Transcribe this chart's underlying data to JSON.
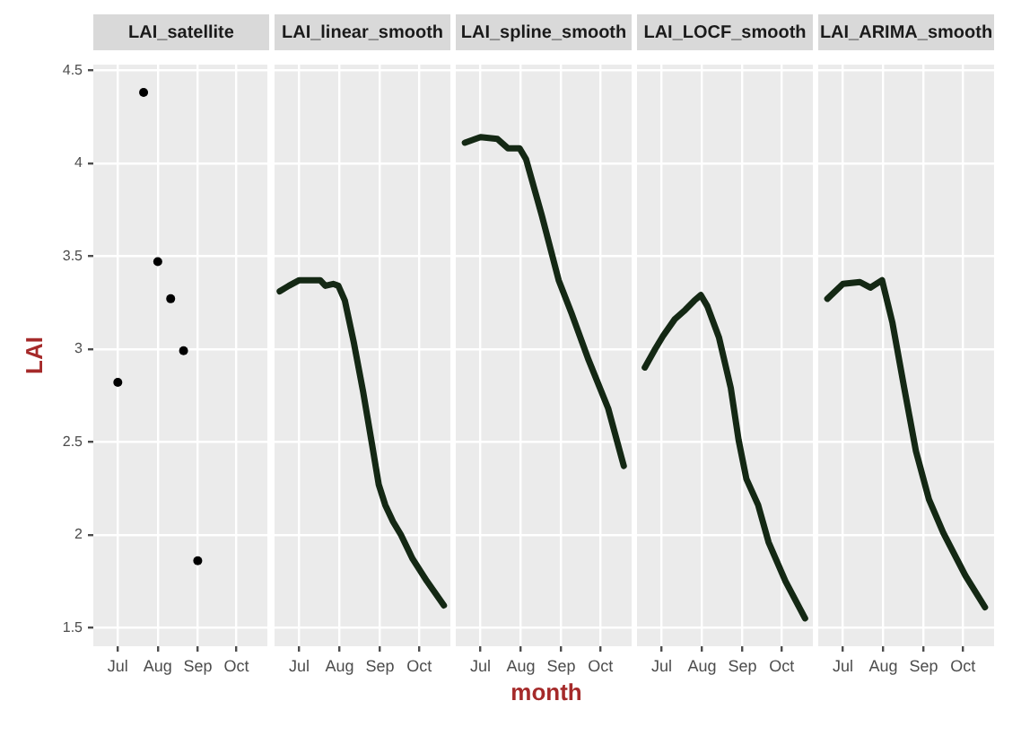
{
  "chart_data": [
    {
      "type": "scatter",
      "title": "LAI_satellite",
      "ylabel": "LAI",
      "x": [
        "--07-01",
        "--07-21",
        "--08-01",
        "--08-11",
        "--08-21",
        "--09-01"
      ],
      "series": [
        {
          "color": "#000000",
          "values": [
            2.82,
            4.38,
            3.47,
            3.27,
            2.99,
            1.86
          ]
        }
      ],
      "marker": "circle",
      "grid": true,
      "xlim": [
        "--06-12",
        "--10-25"
      ],
      "xticks": [
        {
          "value": "--07-01",
          "label": "Jul"
        },
        {
          "value": "--08-01",
          "label": "Aug"
        },
        {
          "value": "--09-01",
          "label": "Sep"
        },
        {
          "value": "--10-01",
          "label": "Oct"
        }
      ],
      "ylim": [
        1.4,
        4.53
      ],
      "yticks": [
        1.5,
        2.0,
        2.5,
        3.0,
        3.5,
        4.0,
        4.5
      ]
    },
    {
      "type": "line",
      "title": "LAI_linear_smooth",
      "x": [
        "--06-16",
        "--06-23",
        "--07-01",
        "--07-17",
        "--07-21",
        "--07-27",
        "--07-31",
        "--08-05",
        "--08-12",
        "--08-19",
        "--08-26",
        "--08-31",
        "--09-05",
        "--09-11",
        "--09-17",
        "--09-26",
        "--10-07",
        "--10-20"
      ],
      "series": [
        {
          "color": "#142814",
          "values": [
            3.31,
            3.34,
            3.37,
            3.37,
            3.34,
            3.35,
            3.34,
            3.26,
            3.03,
            2.77,
            2.48,
            2.27,
            2.16,
            2.07,
            2.0,
            1.87,
            1.75,
            1.62
          ]
        }
      ],
      "grid": true,
      "tick_labels": "x",
      "xlim": [
        "--06-12",
        "--10-25"
      ],
      "xticks": [
        {
          "value": "--07-01",
          "label": "Jul"
        },
        {
          "value": "--08-01",
          "label": "Aug"
        },
        {
          "value": "--09-01",
          "label": "Sep"
        },
        {
          "value": "--10-01",
          "label": "Oct"
        }
      ],
      "ylim": [
        1.4,
        4.53
      ],
      "yticks": [
        1.5,
        2.0,
        2.5,
        3.0,
        3.5,
        4.0,
        4.5
      ]
    },
    {
      "type": "line",
      "title": "LAI_spline_smooth",
      "xlabel": "month",
      "x": [
        "--06-19",
        "--07-01",
        "--07-14",
        "--07-22",
        "--07-31",
        "--08-05",
        "--08-17",
        "--08-30",
        "--09-09",
        "--09-22",
        "--10-07",
        "--10-19"
      ],
      "series": [
        {
          "color": "#142814",
          "values": [
            4.11,
            4.14,
            4.13,
            4.08,
            4.08,
            4.02,
            3.72,
            3.37,
            3.19,
            2.94,
            2.68,
            2.37
          ]
        }
      ],
      "grid": true,
      "tick_labels": "x",
      "xlim": [
        "--06-12",
        "--10-25"
      ],
      "xticks": [
        {
          "value": "--07-01",
          "label": "Jul"
        },
        {
          "value": "--08-01",
          "label": "Aug"
        },
        {
          "value": "--09-01",
          "label": "Sep"
        },
        {
          "value": "--10-01",
          "label": "Oct"
        }
      ],
      "ylim": [
        1.4,
        4.53
      ],
      "yticks": [
        1.5,
        2.0,
        2.5,
        3.0,
        3.5,
        4.0,
        4.5
      ]
    },
    {
      "type": "line",
      "title": "LAI_LOCF_smooth",
      "x": [
        "--06-18",
        "--06-26",
        "--07-02",
        "--07-11",
        "--07-19",
        "--07-26",
        "--07-31",
        "--08-05",
        "--08-14",
        "--08-23",
        "--08-29",
        "--09-04",
        "--09-13",
        "--09-21",
        "--10-04",
        "--10-19"
      ],
      "series": [
        {
          "color": "#142814",
          "values": [
            2.9,
            3.0,
            3.07,
            3.16,
            3.21,
            3.26,
            3.29,
            3.23,
            3.06,
            2.79,
            2.51,
            2.3,
            2.16,
            1.96,
            1.75,
            1.55
          ]
        }
      ],
      "grid": true,
      "tick_labels": "x",
      "xlim": [
        "--06-12",
        "--10-25"
      ],
      "xticks": [
        {
          "value": "--07-01",
          "label": "Jul"
        },
        {
          "value": "--08-01",
          "label": "Aug"
        },
        {
          "value": "--09-01",
          "label": "Sep"
        },
        {
          "value": "--10-01",
          "label": "Oct"
        }
      ],
      "ylim": [
        1.4,
        4.53
      ],
      "yticks": [
        1.5,
        2.0,
        2.5,
        3.0,
        3.5,
        4.0,
        4.5
      ]
    },
    {
      "type": "line",
      "title": "LAI_ARIMA_smooth",
      "x": [
        "--06-19",
        "--07-01",
        "--07-14",
        "--07-22",
        "--07-31",
        "--08-08",
        "--08-17",
        "--08-26",
        "--09-05",
        "--09-16",
        "--10-03",
        "--10-18"
      ],
      "series": [
        {
          "color": "#142814",
          "values": [
            3.27,
            3.35,
            3.36,
            3.33,
            3.37,
            3.14,
            2.79,
            2.45,
            2.19,
            2.01,
            1.78,
            1.61
          ]
        }
      ],
      "grid": true,
      "tick_labels": "x",
      "xlim": [
        "--06-12",
        "--10-25"
      ],
      "xticks": [
        {
          "value": "--07-01",
          "label": "Jul"
        },
        {
          "value": "--08-01",
          "label": "Aug"
        },
        {
          "value": "--09-01",
          "label": "Sep"
        },
        {
          "value": "--10-01",
          "label": "Oct"
        }
      ],
      "ylim": [
        1.4,
        4.53
      ],
      "yticks": [
        1.5,
        2.0,
        2.5,
        3.0,
        3.5,
        4.0,
        4.5
      ]
    }
  ]
}
